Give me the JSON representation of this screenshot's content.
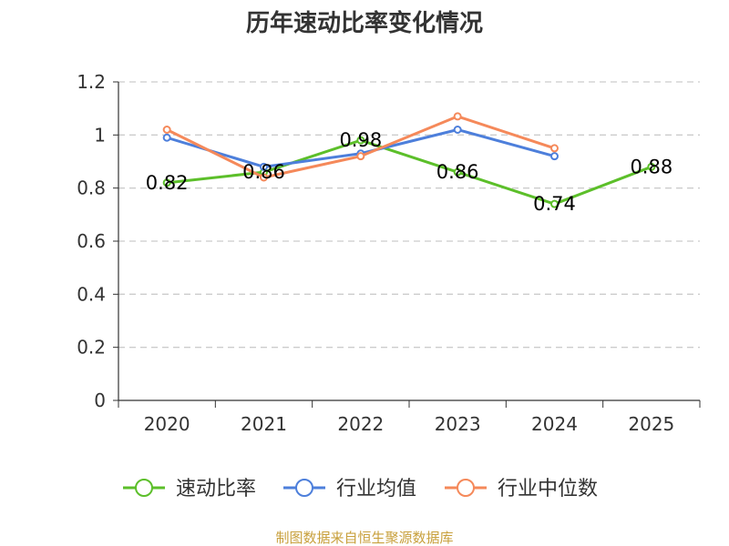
{
  "chart_data": {
    "type": "line",
    "title": "历年速动比率变化情况",
    "categories": [
      "2020",
      "2021",
      "2022",
      "2023",
      "2024",
      "2025"
    ],
    "y_ticks": [
      "0",
      "0.2",
      "0.4",
      "0.6",
      "0.8",
      "1",
      "1.2"
    ],
    "ylim": [
      0,
      1.2
    ],
    "grid": true,
    "legend_position": "bottom",
    "series": [
      {
        "name": "速动比率",
        "color": "#5cbf2a",
        "values": [
          0.82,
          0.86,
          0.98,
          0.86,
          0.74,
          0.88
        ],
        "labels": [
          "0.82",
          "0.86",
          "0.98",
          "0.86",
          "0.74",
          "0.88"
        ]
      },
      {
        "name": "行业均值",
        "color": "#4d7fdb",
        "values": [
          0.99,
          0.88,
          0.93,
          1.02,
          0.92,
          null
        ]
      },
      {
        "name": "行业中位数",
        "color": "#f5895a",
        "values": [
          1.02,
          0.84,
          0.92,
          1.07,
          0.95,
          null
        ]
      }
    ],
    "source": "制图数据来自恒生聚源数据库"
  }
}
